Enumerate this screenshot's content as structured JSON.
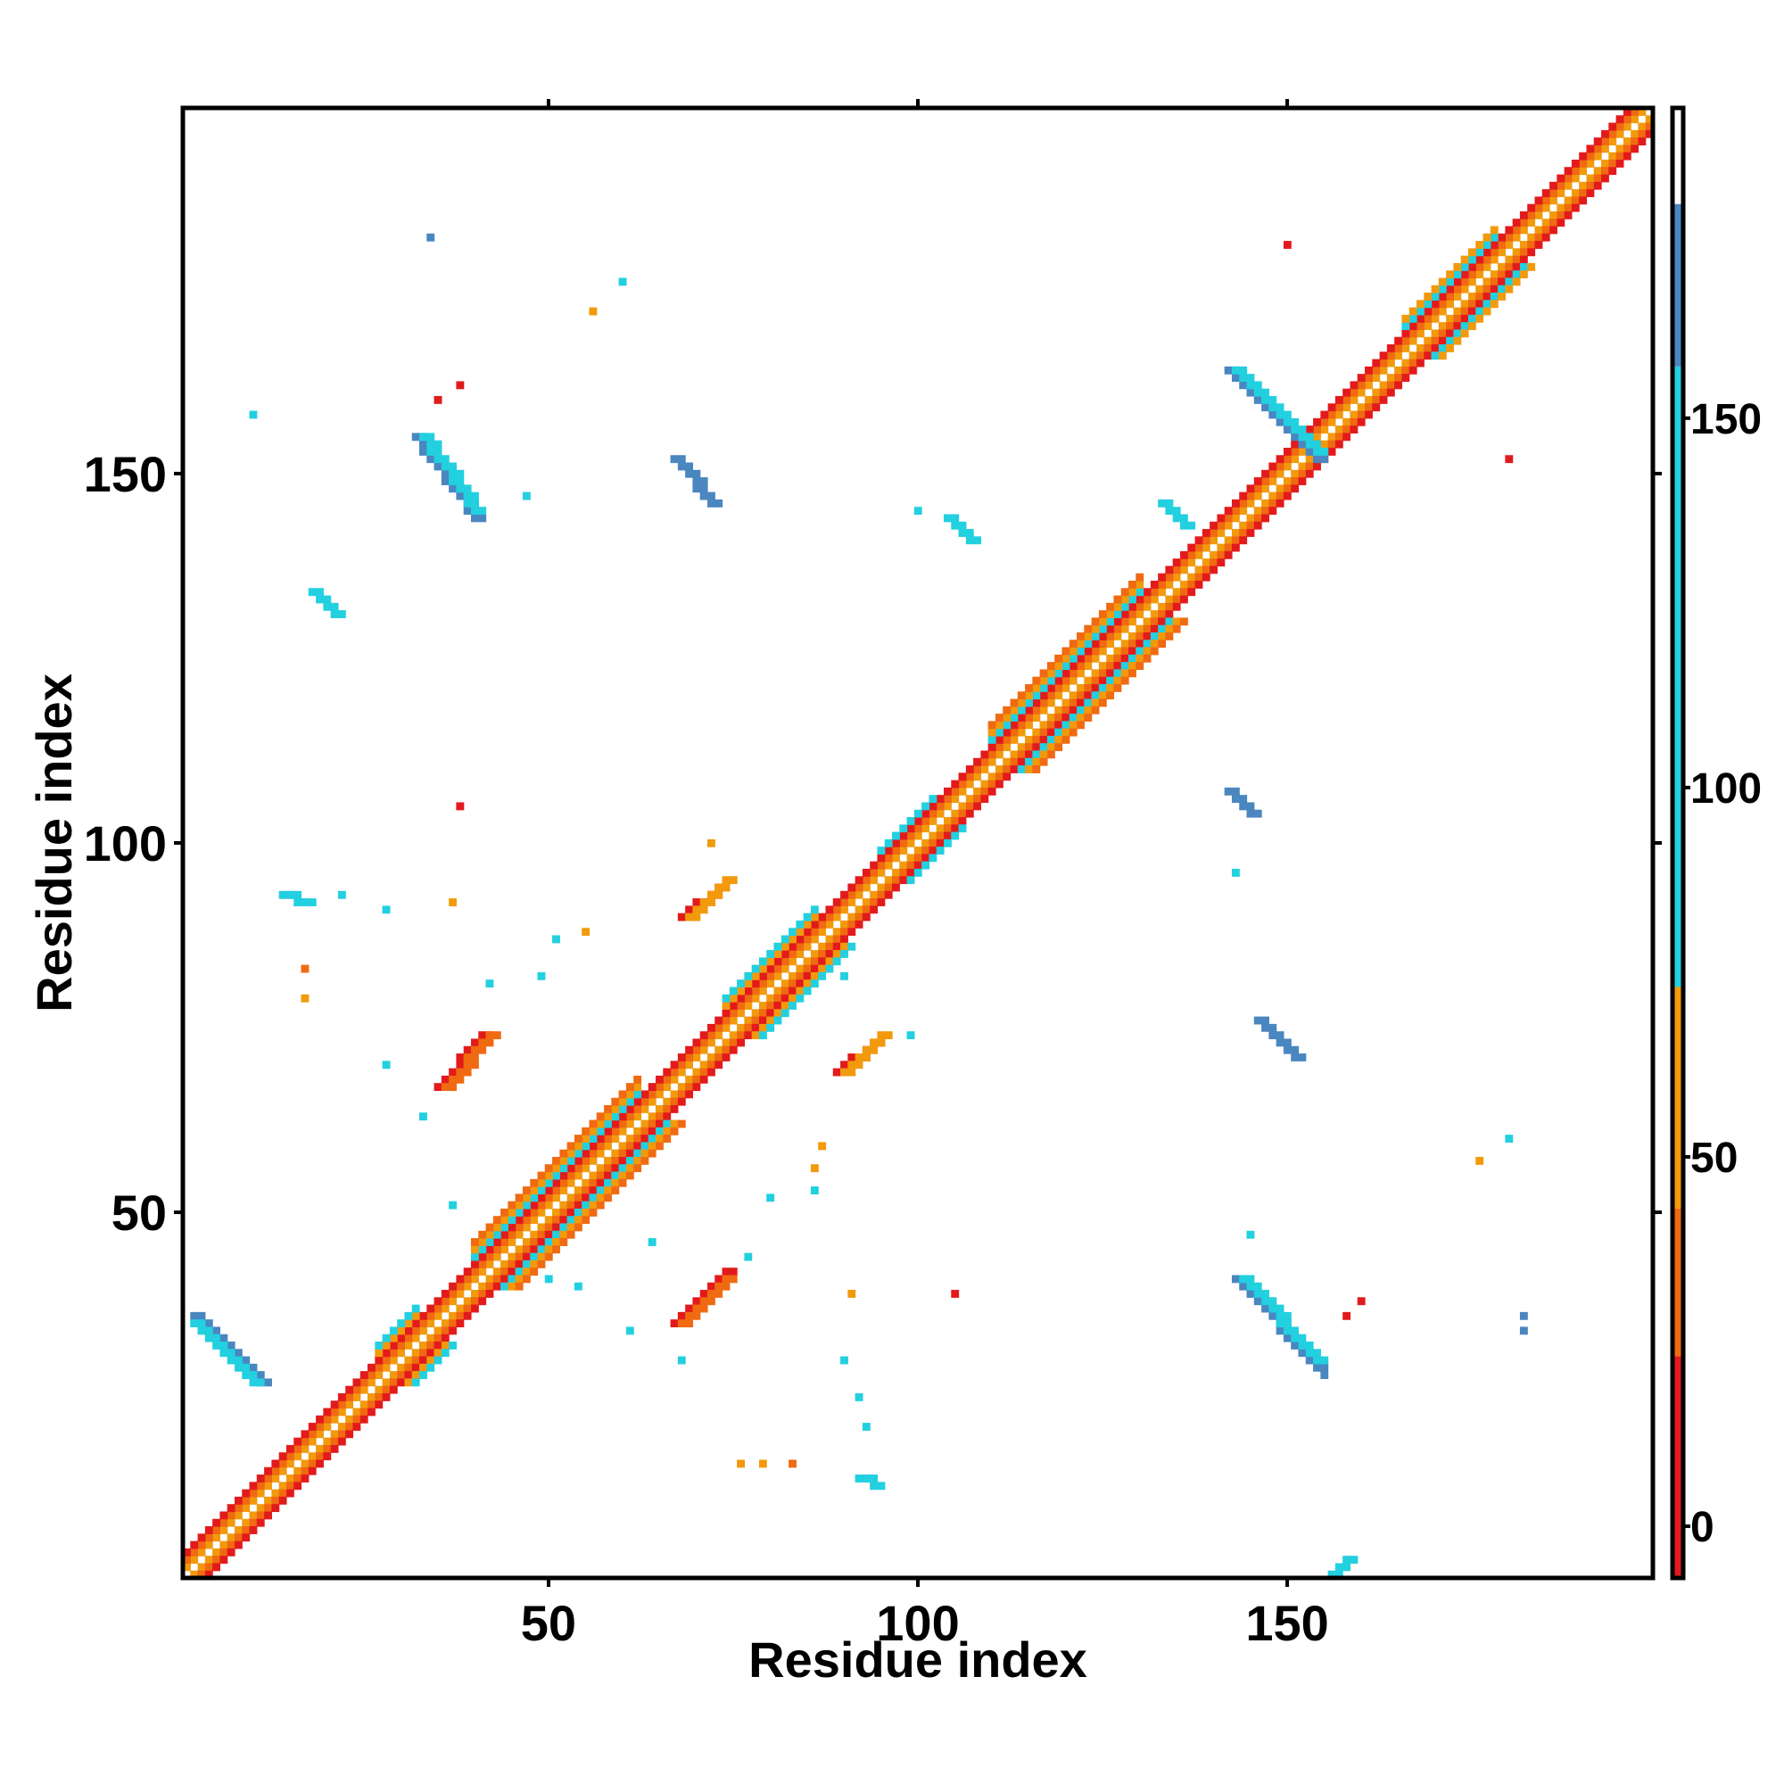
{
  "chart_data": {
    "type": "heatmap",
    "title": "",
    "xlabel": "Residue index",
    "ylabel": "Residue index",
    "xlim": [
      1,
      199
    ],
    "ylim": [
      1,
      199
    ],
    "x_ticks": [
      50,
      100,
      150
    ],
    "y_ticks": [
      50,
      100,
      150
    ],
    "grid": false,
    "colorbar": {
      "ticks": [
        0,
        50,
        100,
        150
      ],
      "range": [
        -7,
        192
      ],
      "bands": [
        {
          "from": -7,
          "to": 23,
          "color": "#e31a1c"
        },
        {
          "from": 23,
          "to": 43,
          "color": "#f06a12"
        },
        {
          "from": 43,
          "to": 73,
          "color": "#f29a0c"
        },
        {
          "from": 73,
          "to": 157,
          "color": "#22d0e0"
        },
        {
          "from": 157,
          "to": 179,
          "color": "#4a86c0"
        },
        {
          "from": 179,
          "to": 192,
          "color": "#ffffff"
        }
      ]
    },
    "diagonal_bands": [
      {
        "from": 1,
        "to": 199,
        "offset": 1,
        "color": "#f29a0c"
      },
      {
        "from": 1,
        "to": 199,
        "offset": 2,
        "color": "#f06a12"
      },
      {
        "from": 1,
        "to": 199,
        "offset": 3,
        "color": "#e31a1c"
      },
      {
        "from": 40,
        "to": 62,
        "offset": 4,
        "color": "#22d0e0"
      },
      {
        "from": 40,
        "to": 62,
        "offset": 5,
        "color": "#f29a0c"
      },
      {
        "from": 40,
        "to": 62,
        "offset": 6,
        "color": "#f06a12"
      },
      {
        "from": 110,
        "to": 130,
        "offset": 4,
        "color": "#22d0e0"
      },
      {
        "from": 110,
        "to": 130,
        "offset": 5,
        "color": "#f29a0c"
      },
      {
        "from": 110,
        "to": 130,
        "offset": 6,
        "color": "#f06a12"
      },
      {
        "from": 166,
        "to": 178,
        "offset": 4,
        "color": "#22d0e0"
      },
      {
        "from": 166,
        "to": 178,
        "offset": 5,
        "color": "#f29a0c"
      },
      {
        "from": 74,
        "to": 86,
        "offset": 4,
        "color": "#f29a0c"
      },
      {
        "from": 74,
        "to": 86,
        "offset": 5,
        "color": "#22d0e0"
      },
      {
        "from": 95,
        "to": 102,
        "offset": 4,
        "color": "#22d0e0"
      },
      {
        "from": 27,
        "to": 32,
        "offset": 4,
        "color": "#f29a0c"
      },
      {
        "from": 27,
        "to": 32,
        "offset": 5,
        "color": "#22d0e0"
      }
    ],
    "contact_lines": [
      {
        "x0": 2,
        "y0": 36,
        "x1": 11,
        "y1": 27,
        "color": "#4a86c0"
      },
      {
        "x0": 2,
        "y0": 35,
        "x1": 10,
        "y1": 27,
        "color": "#22d0e0"
      },
      {
        "x0": 142,
        "y0": 164,
        "x1": 154,
        "y1": 152,
        "color": "#4a86c0"
      },
      {
        "x0": 143,
        "y0": 164,
        "x1": 154,
        "y1": 153,
        "color": "#22d0e0"
      },
      {
        "x0": 32,
        "y0": 155,
        "x1": 40,
        "y1": 144,
        "color": "#4a86c0"
      },
      {
        "x0": 33,
        "y0": 155,
        "x1": 40,
        "y1": 145,
        "color": "#22d0e0"
      },
      {
        "x0": 143,
        "y0": 41,
        "x1": 154,
        "y1": 29,
        "color": "#4a86c0"
      },
      {
        "x0": 144,
        "y0": 41,
        "x1": 154,
        "y1": 30,
        "color": "#22d0e0"
      },
      {
        "x0": 35,
        "y0": 67,
        "x1": 41,
        "y1": 74,
        "color": "#e31a1c"
      },
      {
        "x0": 36,
        "y0": 67,
        "x1": 42,
        "y1": 74,
        "color": "#f06a12"
      },
      {
        "x0": 67,
        "y0": 35,
        "x1": 74,
        "y1": 42,
        "color": "#e31a1c"
      },
      {
        "x0": 68,
        "y0": 35,
        "x1": 74,
        "y1": 41,
        "color": "#f06a12"
      },
      {
        "x0": 68,
        "y0": 90,
        "x1": 73,
        "y1": 94,
        "color": "#e31a1c"
      },
      {
        "x0": 69,
        "y0": 90,
        "x1": 74,
        "y1": 95,
        "color": "#f29a0c"
      },
      {
        "x0": 89,
        "y0": 69,
        "x1": 94,
        "y1": 73,
        "color": "#e31a1c"
      },
      {
        "x0": 90,
        "y0": 69,
        "x1": 95,
        "y1": 74,
        "color": "#f29a0c"
      },
      {
        "x0": 18,
        "y0": 134,
        "x1": 21,
        "y1": 131,
        "color": "#22d0e0"
      },
      {
        "x0": 14,
        "y0": 93,
        "x1": 17,
        "y1": 92,
        "color": "#22d0e0"
      },
      {
        "x0": 133,
        "y0": 146,
        "x1": 136,
        "y1": 143,
        "color": "#22d0e0"
      },
      {
        "x0": 142,
        "y0": 107,
        "x1": 145,
        "y1": 104,
        "color": "#4a86c0"
      },
      {
        "x0": 156,
        "y0": 1,
        "x1": 158,
        "y1": 3,
        "color": "#22d0e0"
      },
      {
        "x0": 92,
        "y0": 14,
        "x1": 94,
        "y1": 13,
        "color": "#22d0e0"
      },
      {
        "x0": 104,
        "y0": 144,
        "x1": 107,
        "y1": 141,
        "color": "#22d0e0"
      },
      {
        "x0": 146,
        "y0": 76,
        "x1": 151,
        "y1": 71,
        "color": "#4a86c0"
      },
      {
        "x0": 67,
        "y0": 152,
        "x1": 72,
        "y1": 146,
        "color": "#4a86c0"
      }
    ],
    "contact_points": [
      [
        34,
        182,
        "#4a86c0"
      ],
      [
        60,
        176,
        "#22d0e0"
      ],
      [
        56,
        172,
        "#f29a0c"
      ],
      [
        38,
        162,
        "#e31a1c"
      ],
      [
        35,
        160,
        "#e31a1c"
      ],
      [
        10,
        158,
        "#22d0e0"
      ],
      [
        150,
        181,
        "#e31a1c"
      ],
      [
        180,
        152,
        "#e31a1c"
      ],
      [
        47,
        147,
        "#22d0e0"
      ],
      [
        100,
        145,
        "#22d0e0"
      ],
      [
        38,
        105,
        "#e31a1c"
      ],
      [
        72,
        100,
        "#f29a0c"
      ],
      [
        143,
        96,
        "#22d0e0"
      ],
      [
        22,
        93,
        "#22d0e0"
      ],
      [
        28,
        91,
        "#22d0e0"
      ],
      [
        37,
        92,
        "#f29a0c"
      ],
      [
        51,
        87,
        "#22d0e0"
      ],
      [
        55,
        88,
        "#f29a0c"
      ],
      [
        17,
        83,
        "#f06a12"
      ],
      [
        17,
        79,
        "#f29a0c"
      ],
      [
        42,
        81,
        "#22d0e0"
      ],
      [
        49,
        82,
        "#22d0e0"
      ],
      [
        90,
        82,
        "#22d0e0"
      ],
      [
        99,
        74,
        "#22d0e0"
      ],
      [
        28,
        70,
        "#22d0e0"
      ],
      [
        33,
        63,
        "#22d0e0"
      ],
      [
        87,
        59,
        "#f29a0c"
      ],
      [
        86,
        56,
        "#f29a0c"
      ],
      [
        86,
        53,
        "#22d0e0"
      ],
      [
        37,
        51,
        "#22d0e0"
      ],
      [
        80,
        52,
        "#22d0e0"
      ],
      [
        176,
        57,
        "#f29a0c"
      ],
      [
        180,
        60,
        "#22d0e0"
      ],
      [
        145,
        47,
        "#22d0e0"
      ],
      [
        64,
        46,
        "#22d0e0"
      ],
      [
        77,
        44,
        "#22d0e0"
      ],
      [
        50,
        41,
        "#22d0e0"
      ],
      [
        54,
        40,
        "#22d0e0"
      ],
      [
        91,
        39,
        "#f29a0c"
      ],
      [
        105,
        39,
        "#e31a1c"
      ],
      [
        160,
        38,
        "#e31a1c"
      ],
      [
        158,
        36,
        "#e31a1c"
      ],
      [
        182,
        36,
        "#4a86c0"
      ],
      [
        182,
        34,
        "#4a86c0"
      ],
      [
        61,
        34,
        "#22d0e0"
      ],
      [
        68,
        30,
        "#22d0e0"
      ],
      [
        90,
        30,
        "#22d0e0"
      ],
      [
        155,
        28,
        "#4a86c0"
      ],
      [
        76,
        16,
        "#f29a0c"
      ],
      [
        79,
        16,
        "#f29a0c"
      ],
      [
        83,
        16,
        "#f06a12"
      ],
      [
        93,
        21,
        "#22d0e0"
      ],
      [
        92,
        25,
        "#22d0e0"
      ]
    ]
  }
}
